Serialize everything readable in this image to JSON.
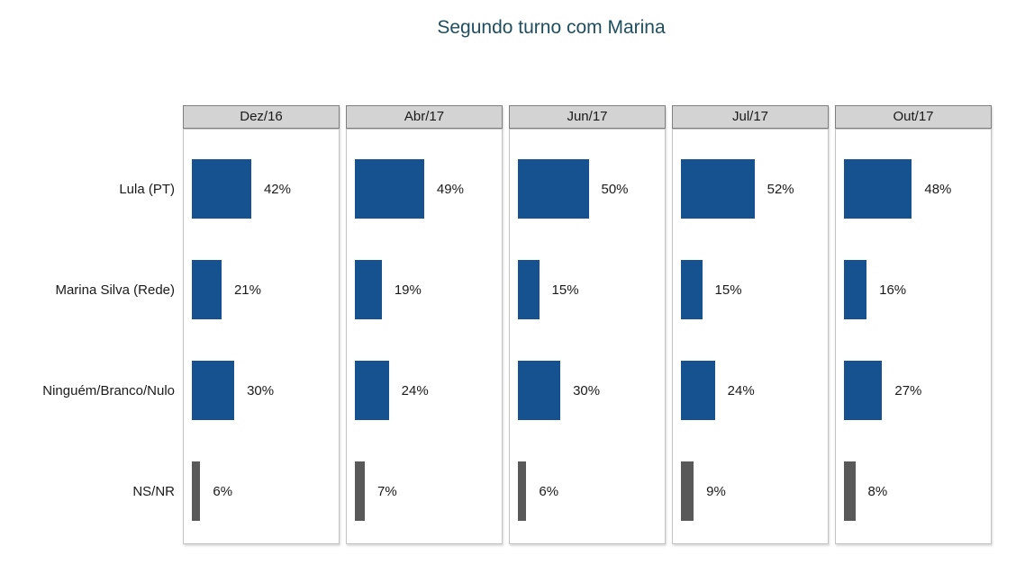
{
  "title": "Segundo turno com Marina",
  "colors": {
    "title": "#1f4e5f",
    "bar_blue": "#165290",
    "bar_gray": "#595959",
    "panel_header_bg": "#d3d3d3",
    "panel_header_border": "#7f7f7f",
    "panel_body_border": "#c3c3c3",
    "text": "#1a1a1a"
  },
  "chart_data": {
    "type": "bar",
    "orientation": "horizontal",
    "title": "Segundo turno com Marina",
    "facets": [
      "Dez/16",
      "Abr/17",
      "Jun/17",
      "Jul/17",
      "Out/17"
    ],
    "categories": [
      "Lula (PT)",
      "Marina Silva (Rede)",
      "Ninguém/Branco/Nulo",
      "NS/NR"
    ],
    "series": [
      {
        "name": "Dez/16",
        "values": [
          42,
          21,
          30,
          6
        ]
      },
      {
        "name": "Abr/17",
        "values": [
          49,
          19,
          24,
          7
        ]
      },
      {
        "name": "Jun/17",
        "values": [
          50,
          15,
          30,
          6
        ]
      },
      {
        "name": "Jul/17",
        "values": [
          52,
          15,
          24,
          9
        ]
      },
      {
        "name": "Out/17",
        "values": [
          48,
          16,
          27,
          8
        ]
      }
    ],
    "value_suffix": "%",
    "category_colors": [
      "#165290",
      "#165290",
      "#165290",
      "#595959"
    ],
    "xlim": [
      0,
      100
    ],
    "grid": false,
    "legend": false
  }
}
